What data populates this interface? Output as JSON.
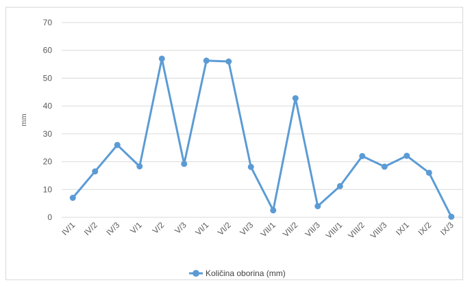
{
  "chart_data": {
    "type": "line",
    "categories": [
      "IV/1",
      "IV/2",
      "IV/3",
      "V/1",
      "V/2",
      "V/3",
      "VI/1",
      "VI/2",
      "VI/3",
      "VII/1",
      "VII/2",
      "VII/3",
      "VIII/1",
      "VIII/2",
      "VIII/3",
      "IX/1",
      "IX/2",
      "IX/3"
    ],
    "series": [
      {
        "name": "Količina oborina (mm)",
        "color": "#5b9bd5",
        "values": [
          7,
          16.5,
          26,
          18.3,
          57,
          19.2,
          56.3,
          56,
          18.1,
          2.5,
          42.8,
          4,
          11.2,
          22,
          18.2,
          22.1,
          16,
          0.2
        ]
      }
    ],
    "title": "",
    "xlabel": "",
    "ylabel": "mm",
    "ylim": [
      0,
      70
    ],
    "yticks": [
      "0",
      "10",
      "20",
      "30",
      "40",
      "50",
      "60",
      "70"
    ],
    "grid": true,
    "legend_position": "bottom"
  }
}
